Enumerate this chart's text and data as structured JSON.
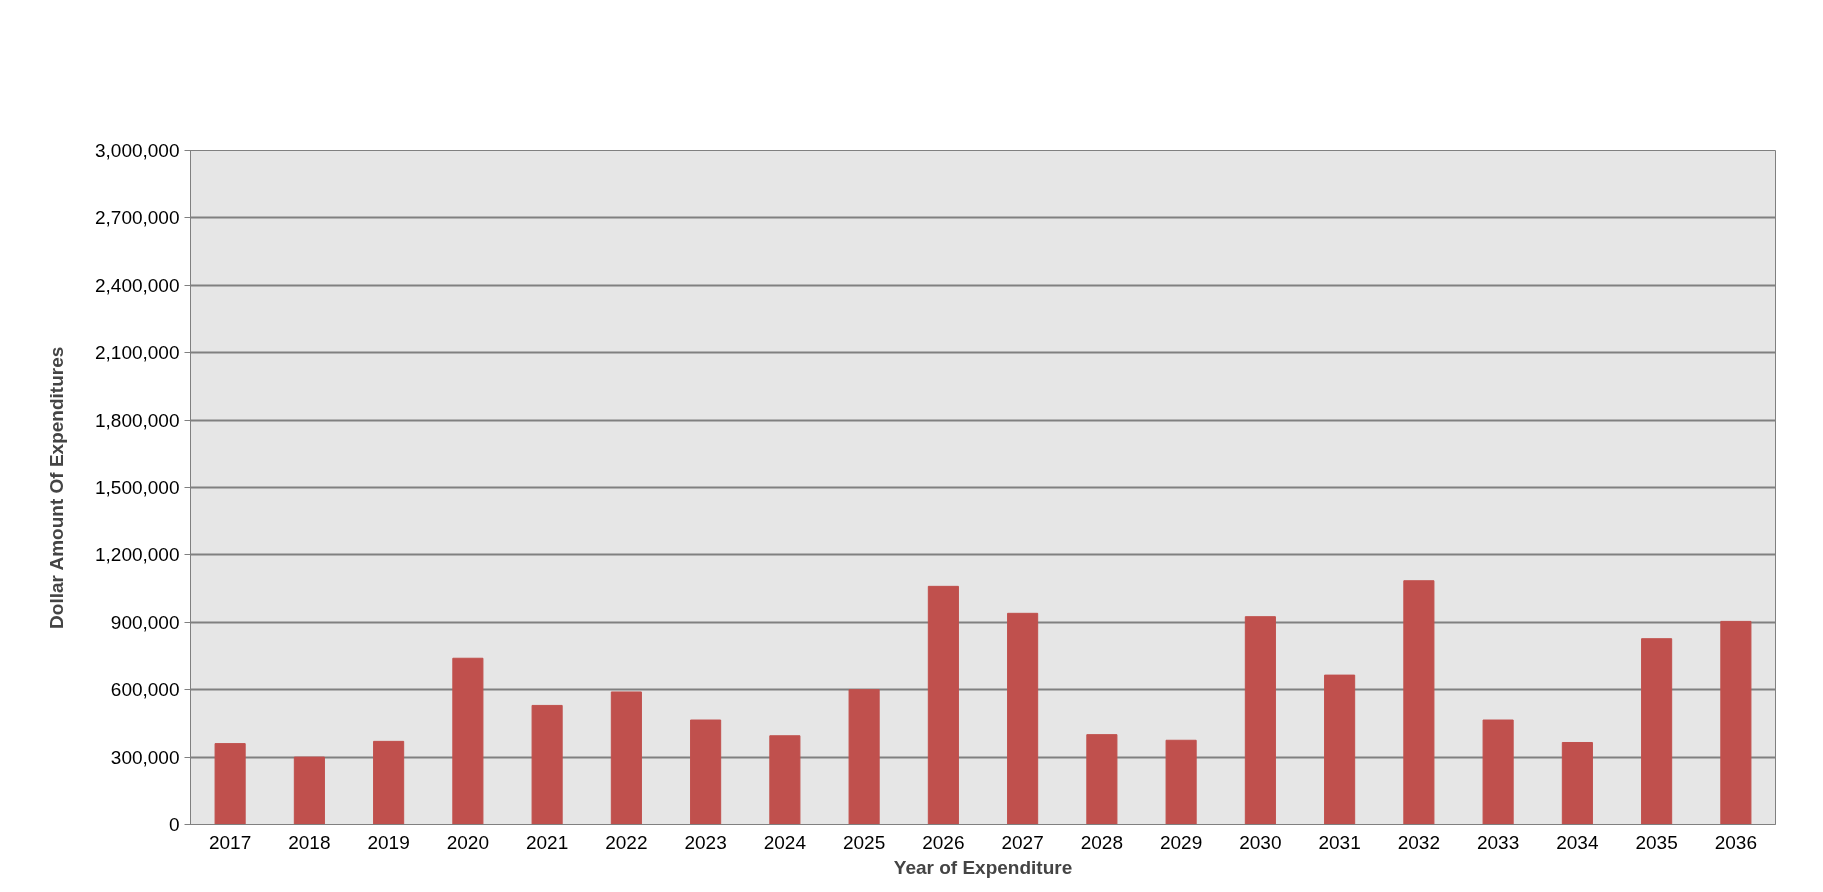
{
  "chart_data": {
    "type": "bar",
    "xlabel": "Year of Expenditure",
    "ylabel": "Dollar Amount Of Expenditures",
    "categories": [
      "2017",
      "2018",
      "2019",
      "2020",
      "2021",
      "2022",
      "2023",
      "2024",
      "2025",
      "2026",
      "2027",
      "2028",
      "2029",
      "2030",
      "2031",
      "2032",
      "2033",
      "2034",
      "2035",
      "2036"
    ],
    "values": [
      360000,
      300000,
      370000,
      740000,
      530000,
      590000,
      465000,
      395000,
      600000,
      1060000,
      940000,
      400000,
      375000,
      925000,
      665000,
      1085000,
      465000,
      365000,
      827000,
      904000
    ],
    "color": "#c0504d",
    "ylim": [
      0,
      3000000
    ],
    "yticks": [
      {
        "value": 0,
        "label": "0"
      },
      {
        "value": 300000,
        "label": "300,000"
      },
      {
        "value": 600000,
        "label": "600,000"
      },
      {
        "value": 900000,
        "label": "900,000"
      },
      {
        "value": 1200000,
        "label": "1,200,000"
      },
      {
        "value": 1500000,
        "label": "1,500,000"
      },
      {
        "value": 1800000,
        "label": "1,800,000"
      },
      {
        "value": 2100000,
        "label": "2,100,000"
      },
      {
        "value": 2400000,
        "label": "2,400,000"
      },
      {
        "value": 2700000,
        "label": "2,700,000"
      },
      {
        "value": 3000000,
        "label": "3,000,000"
      }
    ],
    "grid": "y"
  }
}
